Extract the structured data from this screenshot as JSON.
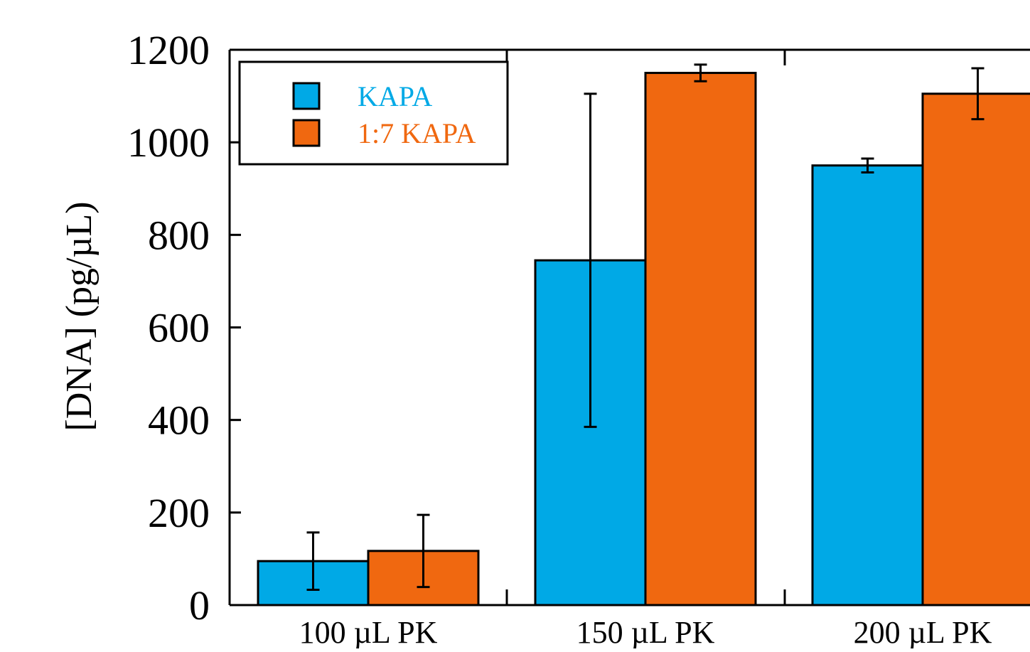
{
  "chart_data": {
    "type": "bar",
    "xlabel": "",
    "ylabel": "[DNA] (pg/µL)",
    "ylim": [
      0,
      1200
    ],
    "yticks": [
      "0",
      "200",
      "400",
      "600",
      "800",
      "1000",
      "1200"
    ],
    "categories": [
      "100 µL PK",
      "150 µL PK",
      "200 µL PK"
    ],
    "series": [
      {
        "name": "KAPA",
        "color": "#00a9e6",
        "values": [
          95,
          745,
          950
        ],
        "errors": [
          62,
          360,
          15
        ]
      },
      {
        "name": "1:7 KAPA",
        "color": "#f06810",
        "values": [
          117,
          1150,
          1105
        ],
        "errors": [
          78,
          18,
          55
        ]
      }
    ],
    "legend": {
      "placement": "top-left"
    },
    "grid": false
  }
}
